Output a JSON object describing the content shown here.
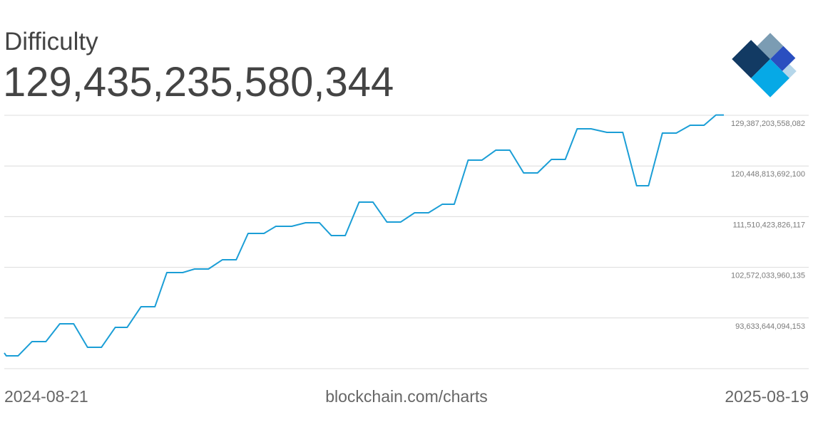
{
  "chart_data": {
    "type": "line",
    "title": "Difficulty",
    "subtitle": "129,435,235,580,344",
    "source": "blockchain.com/charts",
    "color": "#1b9ed6",
    "grid": true,
    "x": [
      "2024-08-21",
      "2024-08-22",
      "2024-08-28",
      "2024-09-04",
      "2024-09-11",
      "2024-09-18",
      "2024-09-25",
      "2024-10-02",
      "2024-10-09",
      "2024-10-16",
      "2024-10-22",
      "2024-10-29",
      "2024-11-05",
      "2024-11-11",
      "2024-11-19",
      "2024-11-25",
      "2024-12-02",
      "2024-12-09",
      "2024-12-16",
      "2024-12-22",
      "2024-12-30",
      "2025-01-05",
      "2025-01-13",
      "2025-01-20",
      "2025-01-27",
      "2025-02-02",
      "2025-02-09",
      "2025-02-16",
      "2025-02-23",
      "2025-03-02",
      "2025-03-09",
      "2025-03-16",
      "2025-03-23",
      "2025-03-30",
      "2025-04-05",
      "2025-04-12",
      "2025-04-19",
      "2025-04-26",
      "2025-05-03",
      "2025-05-10",
      "2025-05-17",
      "2025-05-24",
      "2025-05-31",
      "2025-06-06",
      "2025-06-13",
      "2025-06-21",
      "2025-06-29",
      "2025-07-06",
      "2025-07-12",
      "2025-07-19",
      "2025-07-26",
      "2025-08-02",
      "2025-08-09",
      "2025-08-15",
      "2025-08-19"
    ],
    "values": [
      87460000000000,
      86960000000000,
      86960000000000,
      89470000000000,
      89470000000000,
      92610000000000,
      92610000000000,
      88460000000000,
      88460000000000,
      91980000000000,
      91980000000000,
      95620000000000,
      95620000000000,
      101640000000000,
      101640000000000,
      102270000000000,
      102270000000000,
      103900000000000,
      103900000000000,
      108550000000000,
      108550000000000,
      109800000000000,
      109800000000000,
      110430000000000,
      110430000000000,
      108170000000000,
      108170000000000,
      114070000000000,
      114070000000000,
      110560000000000,
      110560000000000,
      112190000000000,
      112190000000000,
      113700000000000,
      113700000000000,
      121480000000000,
      121480000000000,
      123240000000000,
      123240000000000,
      119220000000000,
      119220000000000,
      121600000000000,
      121600000000000,
      127000000000000,
      127000000000000,
      126370000000000,
      126370000000000,
      116960000000000,
      116960000000000,
      126250000000000,
      126250000000000,
      127630000000000,
      127630000000000,
      129435235580344,
      129435235580344
    ],
    "xlim": [
      "2024-08-21",
      "2025-08-19"
    ],
    "ylim": [
      84695254228171,
      129387203558082
    ],
    "yticks": [
      {
        "value": 93633644094153,
        "label": "93,633,644,094,153"
      },
      {
        "value": 102572033960135,
        "label": "102,572,033,960,135"
      },
      {
        "value": 111510423826117,
        "label": "111,510,423,826,117"
      },
      {
        "value": 120448813692100,
        "label": "120,448,813,692,100"
      },
      {
        "value": 129387203558082,
        "label": "129,387,203,558,082"
      }
    ]
  }
}
